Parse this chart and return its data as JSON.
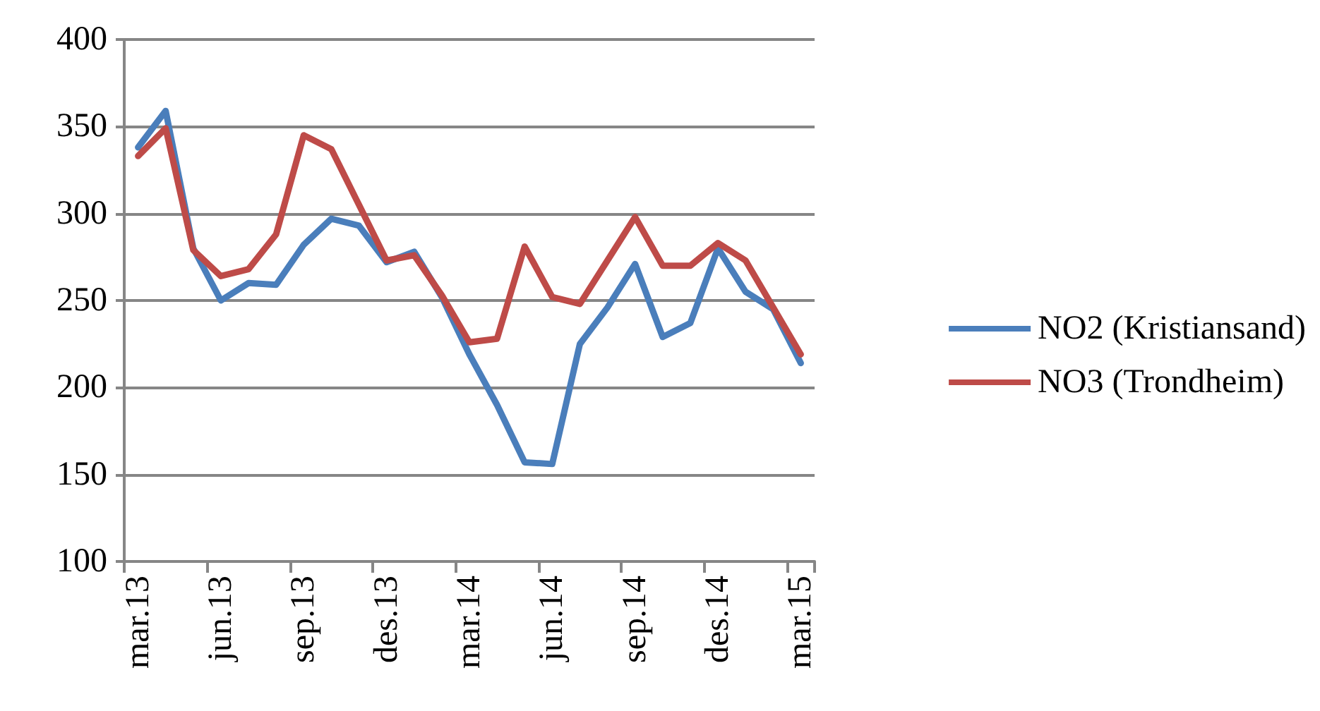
{
  "chart_data": {
    "type": "line",
    "categories": [
      "mar.13",
      null,
      null,
      "jun.13",
      null,
      null,
      "sep.13",
      null,
      null,
      "des.13",
      null,
      null,
      "mar.14",
      null,
      null,
      "jun.14",
      null,
      null,
      "sep.14",
      null,
      null,
      "des.14",
      null,
      null,
      "mar.15"
    ],
    "series": [
      {
        "name": "NO2 (Kristiansand)",
        "color": "#4a7ebb",
        "values": [
          338,
          359,
          280,
          250,
          260,
          259,
          282,
          297,
          293,
          272,
          278,
          252,
          219,
          190,
          157,
          156,
          225,
          246,
          271,
          229,
          237,
          280,
          255,
          245,
          214
        ]
      },
      {
        "name": "NO3 (Trondheim)",
        "color": "#be4b48",
        "values": [
          333,
          349,
          279,
          264,
          268,
          288,
          345,
          337,
          305,
          273,
          276,
          253,
          226,
          228,
          281,
          252,
          248,
          273,
          298,
          270,
          270,
          283,
          273,
          246,
          219
        ]
      }
    ],
    "ylim": [
      100,
      400
    ],
    "yticks": [
      100,
      150,
      200,
      250,
      300,
      350,
      400
    ],
    "grid": "y",
    "legend": "right",
    "marker": "none",
    "line_style": "solid"
  }
}
